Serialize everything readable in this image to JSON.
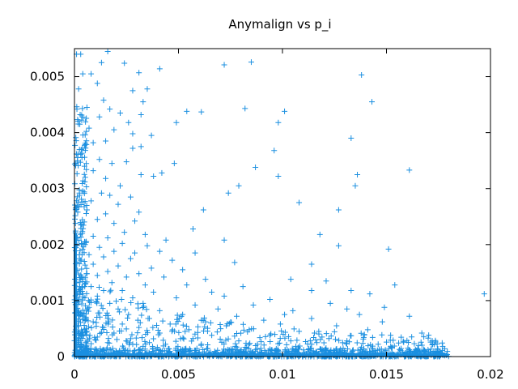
{
  "chart_data": {
    "type": "scatter",
    "title": "Anymalign vs p_i",
    "xlabel": "",
    "ylabel": "",
    "xlim": [
      0,
      0.02
    ],
    "ylim": [
      0,
      0.0055
    ],
    "x_ticks": [
      0,
      0.005,
      0.01,
      0.015,
      0.02
    ],
    "x_tick_labels": [
      "0",
      "0.005",
      "0.01",
      "0.015",
      "0.02"
    ],
    "y_ticks": [
      0,
      0.001,
      0.002,
      0.003,
      0.004,
      0.005
    ],
    "y_tick_labels": [
      "0",
      "0.001",
      "0.002",
      "0.003",
      "0.004",
      "0.005"
    ],
    "grid": false,
    "marker": "plus",
    "color": "#1a8fe0",
    "series": [
      {
        "points": [
          [
            0.0001,
            0.0054
          ],
          [
            0.0003,
            0.0054
          ],
          [
            0.0016,
            0.00545
          ],
          [
            0.0024,
            0.00524
          ],
          [
            0.0072,
            0.00521
          ],
          [
            0.0085,
            0.00526
          ],
          [
            0.0138,
            0.00503
          ],
          [
            0.0004,
            0.00505
          ],
          [
            0.0008,
            0.00505
          ],
          [
            0.0013,
            0.00525
          ],
          [
            0.0031,
            0.00507
          ],
          [
            0.0041,
            0.00514
          ],
          [
            0.0028,
            0.00475
          ],
          [
            0.0035,
            0.00478
          ],
          [
            0.0011,
            0.00488
          ],
          [
            0.0002,
            0.00478
          ],
          [
            0.0006,
            0.00445
          ],
          [
            0.0014,
            0.00458
          ],
          [
            0.0033,
            0.00455
          ],
          [
            0.0143,
            0.00455
          ],
          [
            0.0022,
            0.00435
          ],
          [
            0.0012,
            0.00428
          ],
          [
            0.0054,
            0.00438
          ],
          [
            0.0061,
            0.00437
          ],
          [
            0.0082,
            0.00443
          ],
          [
            0.0101,
            0.00438
          ],
          [
            0.0017,
            0.00442
          ],
          [
            0.0026,
            0.00418
          ],
          [
            0.0032,
            0.00432
          ],
          [
            0.0049,
            0.00418
          ],
          [
            0.0098,
            0.00418
          ],
          [
            0.0007,
            0.00408
          ],
          [
            0.0019,
            0.00405
          ],
          [
            0.0028,
            0.00398
          ],
          [
            0.0037,
            0.00395
          ],
          [
            0.0015,
            0.00385
          ],
          [
            0.0009,
            0.00382
          ],
          [
            0.0004,
            0.00372
          ],
          [
            0.0028,
            0.00372
          ],
          [
            0.0032,
            0.00375
          ],
          [
            0.0133,
            0.0039
          ],
          [
            0.0096,
            0.00368
          ],
          [
            0.0012,
            0.00352
          ],
          [
            0.0018,
            0.00345
          ],
          [
            0.0025,
            0.00348
          ],
          [
            0.0048,
            0.00345
          ],
          [
            0.0087,
            0.00338
          ],
          [
            0.0009,
            0.00332
          ],
          [
            0.0015,
            0.00318
          ],
          [
            0.0032,
            0.00325
          ],
          [
            0.0038,
            0.00322
          ],
          [
            0.0042,
            0.00328
          ],
          [
            0.0098,
            0.00322
          ],
          [
            0.0136,
            0.00325
          ],
          [
            0.0161,
            0.00333
          ],
          [
            0.0005,
            0.00312
          ],
          [
            0.0022,
            0.00305
          ],
          [
            0.0135,
            0.00305
          ],
          [
            0.0013,
            0.00292
          ],
          [
            0.0017,
            0.00288
          ],
          [
            0.0027,
            0.00285
          ],
          [
            0.0074,
            0.00292
          ],
          [
            0.0079,
            0.00305
          ],
          [
            0.0008,
            0.00278
          ],
          [
            0.0021,
            0.00272
          ],
          [
            0.0108,
            0.00275
          ],
          [
            0.0127,
            0.00262
          ],
          [
            0.0006,
            0.00262
          ],
          [
            0.0015,
            0.00255
          ],
          [
            0.0031,
            0.00258
          ],
          [
            0.0062,
            0.00262
          ],
          [
            0.0011,
            0.00245
          ],
          [
            0.0019,
            0.00238
          ],
          [
            0.0029,
            0.00242
          ],
          [
            0.0003,
            0.00235
          ],
          [
            0.0057,
            0.00228
          ],
          [
            0.0024,
            0.00222
          ],
          [
            0.0034,
            0.00218
          ],
          [
            0.0118,
            0.00218
          ],
          [
            0.0009,
            0.00215
          ],
          [
            0.0016,
            0.00212
          ],
          [
            0.0044,
            0.00208
          ],
          [
            0.0072,
            0.00208
          ],
          [
            0.0005,
            0.00205
          ],
          [
            0.0023,
            0.00202
          ],
          [
            0.0035,
            0.00198
          ],
          [
            0.0127,
            0.00198
          ],
          [
            0.0151,
            0.00192
          ],
          [
            0.0012,
            0.00195
          ],
          [
            0.0019,
            0.00188
          ],
          [
            0.0029,
            0.00185
          ],
          [
            0.0041,
            0.00188
          ],
          [
            0.0058,
            0.00185
          ],
          [
            0.0007,
            0.00182
          ],
          [
            0.0014,
            0.00178
          ],
          [
            0.0027,
            0.00175
          ],
          [
            0.0047,
            0.00172
          ],
          [
            0.0077,
            0.00168
          ],
          [
            0.0114,
            0.00165
          ],
          [
            0.0003,
            0.00172
          ],
          [
            0.0009,
            0.00165
          ],
          [
            0.0021,
            0.00162
          ],
          [
            0.0037,
            0.00158
          ],
          [
            0.0052,
            0.00155
          ],
          [
            0.0016,
            0.00152
          ],
          [
            0.0031,
            0.00148
          ],
          [
            0.0006,
            0.00148
          ],
          [
            0.0011,
            0.00145
          ],
          [
            0.0025,
            0.00142
          ],
          [
            0.0043,
            0.00142
          ],
          [
            0.0063,
            0.00138
          ],
          [
            0.0104,
            0.00138
          ],
          [
            0.0121,
            0.00135
          ],
          [
            0.0001,
            0.00132
          ],
          [
            0.0018,
            0.00132
          ],
          [
            0.0034,
            0.00128
          ],
          [
            0.0054,
            0.00128
          ],
          [
            0.0081,
            0.00125
          ],
          [
            0.0154,
            0.00128
          ],
          [
            0.0197,
            0.00112
          ],
          [
            0.0008,
            0.00125
          ],
          [
            0.0014,
            0.00118
          ],
          [
            0.0023,
            0.00118
          ],
          [
            0.0038,
            0.00115
          ],
          [
            0.0066,
            0.00115
          ],
          [
            0.0114,
            0.00118
          ],
          [
            0.0133,
            0.00118
          ],
          [
            0.0142,
            0.00112
          ],
          [
            0.0004,
            0.00112
          ],
          [
            0.0011,
            0.00108
          ],
          [
            0.0028,
            0.00105
          ],
          [
            0.0049,
            0.00105
          ],
          [
            0.0072,
            0.00108
          ],
          [
            0.0094,
            0.00102
          ],
          [
            0.0002,
            0.00098
          ],
          [
            0.0017,
            0.00095
          ],
          [
            0.0033,
            0.00095
          ],
          [
            0.0058,
            0.00092
          ],
          [
            0.0086,
            0.00092
          ],
          [
            0.0123,
            0.00095
          ],
          [
            0.0149,
            0.00088
          ],
          [
            0.0007,
            0.00088
          ],
          [
            0.0021,
            0.00085
          ],
          [
            0.0041,
            0.00082
          ],
          [
            0.0069,
            0.00085
          ],
          [
            0.0105,
            0.00082
          ],
          [
            0.0131,
            0.00085
          ],
          [
            0.0012,
            0.00078
          ],
          [
            0.0026,
            0.00075
          ],
          [
            0.0052,
            0.00075
          ],
          [
            0.0078,
            0.00072
          ],
          [
            0.0101,
            0.00075
          ],
          [
            0.0137,
            0.00075
          ],
          [
            0.0161,
            0.00072
          ],
          [
            0.0004,
            0.00072
          ],
          [
            0.0016,
            0.00068
          ],
          [
            0.0036,
            0.00068
          ],
          [
            0.0061,
            0.00065
          ],
          [
            0.0091,
            0.00065
          ],
          [
            0.0114,
            0.00068
          ],
          [
            0.0148,
            0.00062
          ],
          [
            0.0009,
            0.00062
          ],
          [
            0.0023,
            0.00058
          ],
          [
            0.0046,
            0.00058
          ],
          [
            0.0073,
            0.00055
          ],
          [
            0.0099,
            0.00058
          ],
          [
            0.0126,
            0.00055
          ],
          [
            0.0002,
            0.00055
          ],
          [
            0.0014,
            0.00052
          ],
          [
            0.0031,
            0.00052
          ],
          [
            0.0055,
            0.00048
          ],
          [
            0.0084,
            0.00048
          ],
          [
            0.0108,
            0.00045
          ],
          [
            0.0141,
            0.00048
          ],
          [
            0.0167,
            0.00042
          ],
          [
            0.0006,
            0.00045
          ],
          [
            0.0019,
            0.00042
          ],
          [
            0.0041,
            0.00042
          ],
          [
            0.0066,
            0.00038
          ],
          [
            0.0094,
            0.00038
          ],
          [
            0.0119,
            0.00035
          ],
          [
            0.0152,
            0.00038
          ],
          [
            0.0011,
            0.00035
          ],
          [
            0.0027,
            0.00032
          ],
          [
            0.0051,
            0.00032
          ],
          [
            0.0079,
            0.00028
          ],
          [
            0.0104,
            0.00028
          ],
          [
            0.0131,
            0.00028
          ],
          [
            0.0172,
            0.00028
          ],
          [
            0.0003,
            0.00028
          ],
          [
            0.0016,
            0.00025
          ],
          [
            0.0036,
            0.00025
          ],
          [
            0.0061,
            0.00022
          ],
          [
            0.0088,
            0.00022
          ],
          [
            0.0114,
            0.00022
          ],
          [
            0.0146,
            0.00022
          ],
          [
            0.0177,
            0.00018
          ]
        ],
        "dense_band": {
          "x_range": [
            0,
            0.018
          ],
          "y_range": [
            0,
            0.00015
          ],
          "description_count": 700
        },
        "dense_column": {
          "x_range": [
            0,
            0.0006
          ],
          "y_range": [
            0,
            0.0045
          ],
          "description_count": 260
        }
      }
    ]
  }
}
